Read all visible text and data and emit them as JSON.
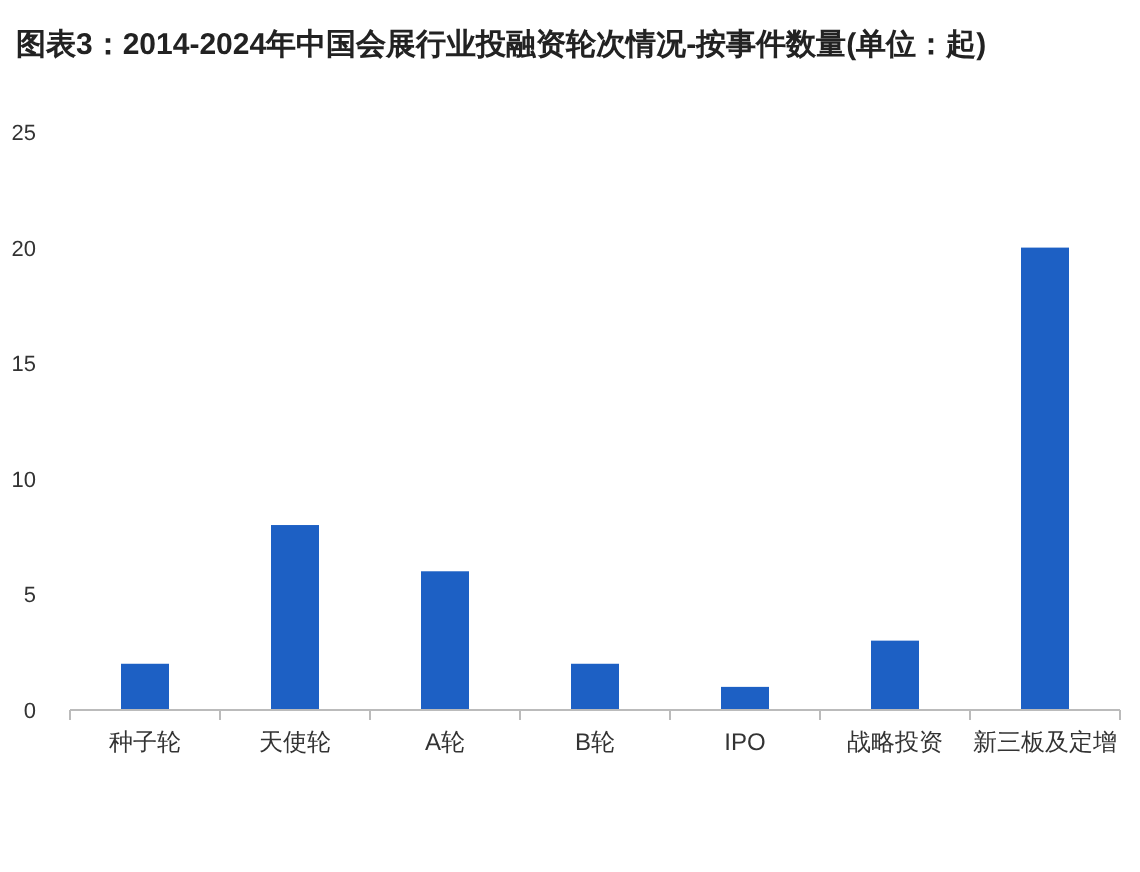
{
  "chart_data": {
    "type": "bar",
    "title": "图表3：2014-2024年中国会展行业投融资轮次情况-按事件数量(单位：起)",
    "categories": [
      "种子轮",
      "天使轮",
      "A轮",
      "B轮",
      "IPO",
      "战略投资",
      "新三板及定增"
    ],
    "values": [
      2,
      8,
      6,
      2,
      1,
      3,
      20
    ],
    "color": "#1d60c4",
    "ylim": [
      0,
      25
    ],
    "yticks": [
      0,
      5,
      10,
      15,
      20,
      25
    ]
  }
}
